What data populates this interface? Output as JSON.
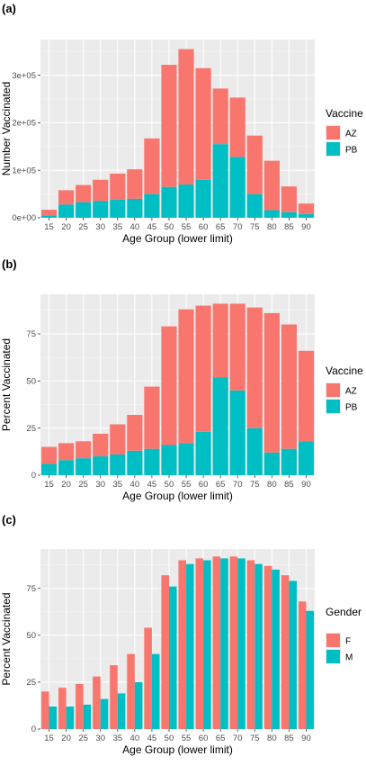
{
  "colors": {
    "red": "#F8766D",
    "teal": "#00BFC4",
    "panel_bg": "#EBEBEB",
    "grid_major": "#FFFFFF",
    "grid_minor": "#F5F5F5"
  },
  "chart_data": [
    {
      "panel_label": "(a)",
      "type": "bar",
      "stacked": true,
      "categories": [
        "15",
        "20",
        "25",
        "30",
        "35",
        "40",
        "45",
        "50",
        "55",
        "60",
        "65",
        "70",
        "75",
        "80",
        "85",
        "90"
      ],
      "series": [
        {
          "name": "PB",
          "values": [
            5000,
            28000,
            33000,
            35000,
            38000,
            40000,
            50000,
            65000,
            70000,
            80000,
            155000,
            128000,
            50000,
            16000,
            12000,
            8000
          ]
        },
        {
          "name": "AZ",
          "values": [
            12000,
            30000,
            36000,
            45000,
            55000,
            62000,
            117000,
            257000,
            285000,
            235000,
            117000,
            125000,
            123000,
            104000,
            54000,
            22000
          ]
        }
      ],
      "yticks": [
        "0e+00",
        "1e+05",
        "2e+05",
        "3e+05"
      ],
      "ytick_values": [
        0,
        100000,
        200000,
        300000
      ],
      "ylim": [
        0,
        375000
      ],
      "xlabel": "Age Group (lower limit)",
      "ylabel": "Number Vaccinated",
      "legend_title": "Vaccine",
      "legend_labels": [
        "AZ",
        "PB"
      ],
      "legend": "right",
      "grid": true
    },
    {
      "panel_label": "(b)",
      "type": "bar",
      "stacked": true,
      "categories": [
        "15",
        "20",
        "25",
        "30",
        "35",
        "40",
        "45",
        "50",
        "55",
        "60",
        "65",
        "70",
        "75",
        "80",
        "85",
        "90"
      ],
      "series": [
        {
          "name": "PB",
          "values": [
            6,
            8,
            9,
            10,
            11,
            13,
            14,
            16,
            17,
            23,
            52,
            45,
            25,
            12,
            14,
            18
          ]
        },
        {
          "name": "AZ",
          "values": [
            9,
            9,
            9,
            12,
            16,
            19,
            33,
            63,
            71,
            67,
            39,
            46,
            64,
            74,
            66,
            48
          ]
        }
      ],
      "yticks": [
        "0",
        "25",
        "50",
        "75"
      ],
      "ytick_values": [
        0,
        25,
        50,
        75
      ],
      "ylim": [
        0,
        96
      ],
      "xlabel": "Age Group (lower limit)",
      "ylabel": "Percent Vaccinated",
      "legend_title": "Vaccine",
      "legend_labels": [
        "AZ",
        "PB"
      ],
      "legend": "right",
      "grid": true
    },
    {
      "panel_label": "(c)",
      "type": "bar",
      "stacked": false,
      "categories": [
        "15",
        "20",
        "25",
        "30",
        "35",
        "40",
        "45",
        "50",
        "55",
        "60",
        "65",
        "70",
        "75",
        "80",
        "85",
        "90"
      ],
      "series": [
        {
          "name": "F",
          "values": [
            20,
            22,
            24,
            28,
            34,
            40,
            54,
            82,
            90,
            91,
            92,
            92,
            90,
            87,
            82,
            68
          ]
        },
        {
          "name": "M",
          "values": [
            12,
            12,
            13,
            16,
            19,
            25,
            40,
            76,
            88,
            90,
            91,
            91,
            88,
            85,
            79,
            63
          ]
        }
      ],
      "yticks": [
        "0",
        "25",
        "50",
        "75"
      ],
      "ytick_values": [
        0,
        25,
        50,
        75
      ],
      "ylim": [
        0,
        96
      ],
      "xlabel": "Age Group (lower limit)",
      "ylabel": "Percent Vaccinated",
      "legend_title": "Gender",
      "legend_labels": [
        "F",
        "M"
      ],
      "legend": "right",
      "grid": true
    }
  ]
}
